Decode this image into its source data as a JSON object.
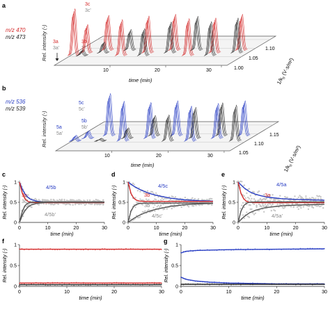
{
  "figure": {
    "panels": {
      "a": {
        "letter": "a",
        "legend": [
          {
            "text": "m/z 470",
            "color": "#d42a2a"
          },
          {
            "text": "m/z 473",
            "color": "#222222"
          }
        ],
        "peak_labels": [
          {
            "text": "3c",
            "color": "#d42a2a"
          },
          {
            "text": "3c'",
            "color": "#888888"
          },
          {
            "text": "3a",
            "color": "#d42a2a"
          },
          {
            "text": "3a'",
            "color": "#888888"
          },
          {
            "text": "3b",
            "color": "#d42a2a"
          },
          {
            "text": "3b'",
            "color": "#888888"
          }
        ],
        "x_ticks": [
          "10",
          "20",
          "30"
        ],
        "x_label": "time (min)",
        "y_label": "Rel. intensity (-)",
        "z_ticks": [
          "1.00",
          "1.05",
          "1.10"
        ],
        "z_label": "1/k0 (V·s/m²)"
      },
      "b": {
        "letter": "b",
        "legend": [
          {
            "text": "m/z 536",
            "color": "#2a3fc4"
          },
          {
            "text": "m/z 539",
            "color": "#222222"
          }
        ],
        "peak_labels": [
          {
            "text": "5c",
            "color": "#2a3fc4"
          },
          {
            "text": "5c'",
            "color": "#888888"
          },
          {
            "text": "5a",
            "color": "#2a3fc4"
          },
          {
            "text": "5a'",
            "color": "#888888"
          },
          {
            "text": "5b",
            "color": "#2a3fc4"
          },
          {
            "text": "5b'",
            "color": "#888888"
          }
        ],
        "x_ticks": [
          "10",
          "20",
          "30"
        ],
        "x_label": "time (min)",
        "y_label": "Rel. intensity (-)",
        "z_ticks": [
          "1.05",
          "1.10",
          "1.15"
        ],
        "z_label": "1/k0 (V·s/m²)"
      },
      "c": {
        "letter": "c",
        "labels": [
          {
            "text": "4/5b",
            "color": "#2a3fc4"
          },
          {
            "text": "3c",
            "color": "#d42a2a"
          },
          {
            "text": "3c'",
            "color": "#888888"
          },
          {
            "text": "4/5b'",
            "color": "#888888"
          }
        ]
      },
      "d": {
        "letter": "d",
        "labels": [
          {
            "text": "4/5c",
            "color": "#2a3fc4"
          },
          {
            "text": "3b",
            "color": "#d42a2a"
          },
          {
            "text": "3b'",
            "color": "#888888"
          },
          {
            "text": "4/5c'",
            "color": "#888888"
          }
        ]
      },
      "e": {
        "letter": "e",
        "labels": [
          {
            "text": "4/5a",
            "color": "#2a3fc4"
          },
          {
            "text": "3a",
            "color": "#d42a2a"
          },
          {
            "text": "3a'",
            "color": "#888888"
          },
          {
            "text": "4/5a'",
            "color": "#888888"
          }
        ]
      },
      "f": {
        "letter": "f"
      },
      "g": {
        "letter": "g"
      }
    },
    "y_axis_label": "Rel. intensity (-)",
    "x_axis_label": "time (min)"
  },
  "chart_data": [
    {
      "panel": "a",
      "type": "line",
      "title": "",
      "xlabel": "time (min)",
      "ylabel": "Rel. intensity (-)",
      "zlabel": "1/k0 (V·s/m²)",
      "x_ticks": [
        10,
        20,
        30
      ],
      "z_ticks": [
        1.0,
        1.05,
        1.1
      ],
      "series": [
        {
          "name": "m/z 470",
          "color": "#d42a2a",
          "peaks": [
            {
              "time": 0.5,
              "height": 0.92
            },
            {
              "time": 2,
              "height": 0.55
            },
            {
              "time": 5,
              "height": 0.68
            },
            {
              "time": 9,
              "height": 0.7
            },
            {
              "time": 13,
              "height": 0.72
            },
            {
              "time": 17,
              "height": 0.7
            },
            {
              "time": 21,
              "height": 0.72
            },
            {
              "time": 25,
              "height": 0.68
            },
            {
              "time": 29,
              "height": 0.7
            }
          ]
        },
        {
          "name": "m/z 473",
          "color": "#222222",
          "peaks": [
            {
              "time": 2,
              "height": 0.1
            },
            {
              "time": 5,
              "height": 0.2
            },
            {
              "time": 9,
              "height": 0.4
            },
            {
              "time": 13,
              "height": 0.52
            },
            {
              "time": 17,
              "height": 0.6
            },
            {
              "time": 21,
              "height": 0.66
            },
            {
              "time": 25,
              "height": 0.66
            },
            {
              "time": 29,
              "height": 0.68
            }
          ]
        }
      ]
    },
    {
      "panel": "b",
      "type": "line",
      "title": "",
      "xlabel": "time (min)",
      "ylabel": "Rel. intensity (-)",
      "zlabel": "1/k0 (V·s/m²)",
      "x_ticks": [
        10,
        20,
        30
      ],
      "z_ticks": [
        1.05,
        1.1,
        1.15
      ],
      "series": [
        {
          "name": "m/z 536",
          "color": "#2a3fc4",
          "peaks": [
            {
              "time": 0.5,
              "height": 0.1
            },
            {
              "time": 2,
              "height": 0.14
            },
            {
              "time": 5,
              "height": 0.85
            },
            {
              "time": 9,
              "height": 0.8
            },
            {
              "time": 13,
              "height": 0.72
            },
            {
              "time": 17,
              "height": 0.7
            },
            {
              "time": 21,
              "height": 0.7
            },
            {
              "time": 25,
              "height": 0.7
            },
            {
              "time": 29,
              "height": 0.7
            }
          ]
        },
        {
          "name": "m/z 539",
          "color": "#222222",
          "peaks": [
            {
              "time": 5,
              "height": 0.04
            },
            {
              "time": 9,
              "height": 0.2
            },
            {
              "time": 13,
              "height": 0.4
            },
            {
              "time": 17,
              "height": 0.52
            },
            {
              "time": 21,
              "height": 0.62
            },
            {
              "time": 25,
              "height": 0.66
            },
            {
              "time": 29,
              "height": 0.72
            }
          ]
        }
      ]
    },
    {
      "panel": "c",
      "type": "line",
      "xlabel": "time (min)",
      "ylabel": "Rel. intensity (-)",
      "xlim": [
        0,
        30
      ],
      "ylim": [
        0,
        1
      ],
      "x_ticks": [
        0,
        10,
        20,
        30
      ],
      "y_ticks": [
        0,
        0.5,
        1
      ],
      "series": [
        {
          "name": "4/5b",
          "color": "#2a3fc4",
          "x": [
            0,
            1,
            2,
            3,
            4,
            6,
            8,
            10,
            15,
            20,
            30
          ],
          "y": [
            1.0,
            0.82,
            0.7,
            0.62,
            0.57,
            0.53,
            0.51,
            0.5,
            0.5,
            0.5,
            0.5
          ]
        },
        {
          "name": "3c",
          "color": "#d42a2a",
          "x": [
            0,
            1,
            2,
            3,
            4,
            6,
            8,
            10,
            15,
            20,
            30
          ],
          "y": [
            1.0,
            0.72,
            0.58,
            0.52,
            0.5,
            0.49,
            0.49,
            0.49,
            0.49,
            0.49,
            0.49
          ]
        },
        {
          "name": "3c'",
          "color": "#888888",
          "x": [
            0,
            1,
            2,
            3,
            4,
            6,
            8,
            10,
            15,
            20,
            30
          ],
          "y": [
            0.0,
            0.28,
            0.42,
            0.48,
            0.5,
            0.51,
            0.51,
            0.51,
            0.51,
            0.51,
            0.51
          ]
        },
        {
          "name": "4/5b'",
          "color": "#888888",
          "x": [
            0,
            1,
            2,
            3,
            4,
            6,
            8,
            10,
            15,
            20,
            30
          ],
          "y": [
            0.0,
            0.18,
            0.3,
            0.38,
            0.43,
            0.47,
            0.49,
            0.5,
            0.5,
            0.5,
            0.5
          ]
        }
      ]
    },
    {
      "panel": "d",
      "type": "line",
      "xlabel": "time (min)",
      "ylabel": "Rel. intensity (-)",
      "xlim": [
        0,
        30
      ],
      "ylim": [
        0,
        1
      ],
      "x_ticks": [
        0,
        10,
        20,
        30
      ],
      "y_ticks": [
        0,
        0.5,
        1
      ],
      "series": [
        {
          "name": "4/5c",
          "color": "#2a3fc4",
          "x": [
            0,
            2,
            4,
            6,
            8,
            10,
            15,
            20,
            25,
            30
          ],
          "y": [
            1.0,
            0.9,
            0.82,
            0.76,
            0.71,
            0.67,
            0.6,
            0.56,
            0.54,
            0.53
          ]
        },
        {
          "name": "3b",
          "color": "#d42a2a",
          "x": [
            0,
            1,
            2,
            3,
            4,
            6,
            8,
            10,
            15,
            20,
            30
          ],
          "y": [
            1.0,
            0.72,
            0.6,
            0.55,
            0.53,
            0.52,
            0.52,
            0.52,
            0.52,
            0.52,
            0.52
          ]
        },
        {
          "name": "3b'",
          "color": "#888888",
          "x": [
            0,
            1,
            2,
            3,
            4,
            6,
            8,
            10,
            15,
            20,
            30
          ],
          "y": [
            0.0,
            0.28,
            0.4,
            0.45,
            0.47,
            0.48,
            0.48,
            0.48,
            0.48,
            0.48,
            0.48
          ]
        },
        {
          "name": "4/5c'",
          "color": "#888888",
          "x": [
            0,
            2,
            4,
            6,
            8,
            10,
            15,
            20,
            25,
            30
          ],
          "y": [
            0.0,
            0.1,
            0.18,
            0.24,
            0.29,
            0.33,
            0.4,
            0.44,
            0.46,
            0.47
          ]
        }
      ]
    },
    {
      "panel": "e",
      "type": "line",
      "xlabel": "time (min)",
      "ylabel": "Rel. intensity (-)",
      "xlim": [
        0,
        30
      ],
      "ylim": [
        0,
        1
      ],
      "x_ticks": [
        0,
        10,
        20,
        30
      ],
      "y_ticks": [
        0,
        0.5,
        1
      ],
      "series": [
        {
          "name": "4/5a",
          "color": "#2a3fc4",
          "x": [
            0,
            2,
            4,
            6,
            8,
            10,
            15,
            20,
            25,
            30
          ],
          "y": [
            1.0,
            0.86,
            0.76,
            0.7,
            0.66,
            0.63,
            0.59,
            0.57,
            0.56,
            0.55
          ]
        },
        {
          "name": "3a",
          "color": "#d42a2a",
          "x": [
            0,
            1,
            2,
            3,
            4,
            6,
            8,
            10,
            15,
            20,
            30
          ],
          "y": [
            1.0,
            0.72,
            0.58,
            0.52,
            0.5,
            0.49,
            0.49,
            0.49,
            0.49,
            0.49,
            0.49
          ]
        },
        {
          "name": "3a'",
          "color": "#888888",
          "x": [
            0,
            1,
            2,
            3,
            4,
            6,
            8,
            10,
            15,
            20,
            30
          ],
          "y": [
            0.0,
            0.28,
            0.42,
            0.48,
            0.5,
            0.51,
            0.51,
            0.51,
            0.51,
            0.51,
            0.51
          ]
        },
        {
          "name": "4/5a'",
          "color": "#888888",
          "x": [
            0,
            2,
            4,
            6,
            8,
            10,
            15,
            20,
            25,
            30
          ],
          "y": [
            0.0,
            0.14,
            0.24,
            0.3,
            0.34,
            0.37,
            0.41,
            0.43,
            0.44,
            0.45
          ]
        }
      ]
    },
    {
      "panel": "f",
      "type": "line",
      "xlabel": "time (min)",
      "ylabel": "Rel. intensity (-)",
      "xlim": [
        0,
        30
      ],
      "ylim": [
        0,
        1
      ],
      "x_ticks": [
        0,
        10,
        20,
        30
      ],
      "y_ticks": [
        0,
        0.5,
        1
      ],
      "series": [
        {
          "color": "#d42a2a",
          "x": [
            0,
            30
          ],
          "y": [
            0.89,
            0.89
          ]
        },
        {
          "color": "#d42a2a",
          "x": [
            0,
            30
          ],
          "y": [
            0.08,
            0.08
          ]
        },
        {
          "color": "#222222",
          "x": [
            0,
            30
          ],
          "y": [
            0.04,
            0.04
          ]
        }
      ]
    },
    {
      "panel": "g",
      "type": "line",
      "xlabel": "time (min)",
      "ylabel": "Rel. intensity (-)",
      "xlim": [
        0,
        30
      ],
      "ylim": [
        0,
        1
      ],
      "x_ticks": [
        0,
        10,
        20,
        30
      ],
      "y_ticks": [
        0,
        0.5,
        1
      ],
      "series": [
        {
          "color": "#2a3fc4",
          "x": [
            0,
            1,
            3,
            6,
            10,
            20,
            30
          ],
          "y": [
            0.8,
            0.84,
            0.86,
            0.87,
            0.88,
            0.89,
            0.9
          ]
        },
        {
          "color": "#2a3fc4",
          "x": [
            0,
            1,
            3,
            6,
            10,
            15,
            20,
            30
          ],
          "y": [
            0.22,
            0.17,
            0.13,
            0.1,
            0.08,
            0.07,
            0.06,
            0.06
          ]
        },
        {
          "color": "#222222",
          "x": [
            0,
            30
          ],
          "y": [
            0.05,
            0.05
          ]
        }
      ]
    }
  ]
}
